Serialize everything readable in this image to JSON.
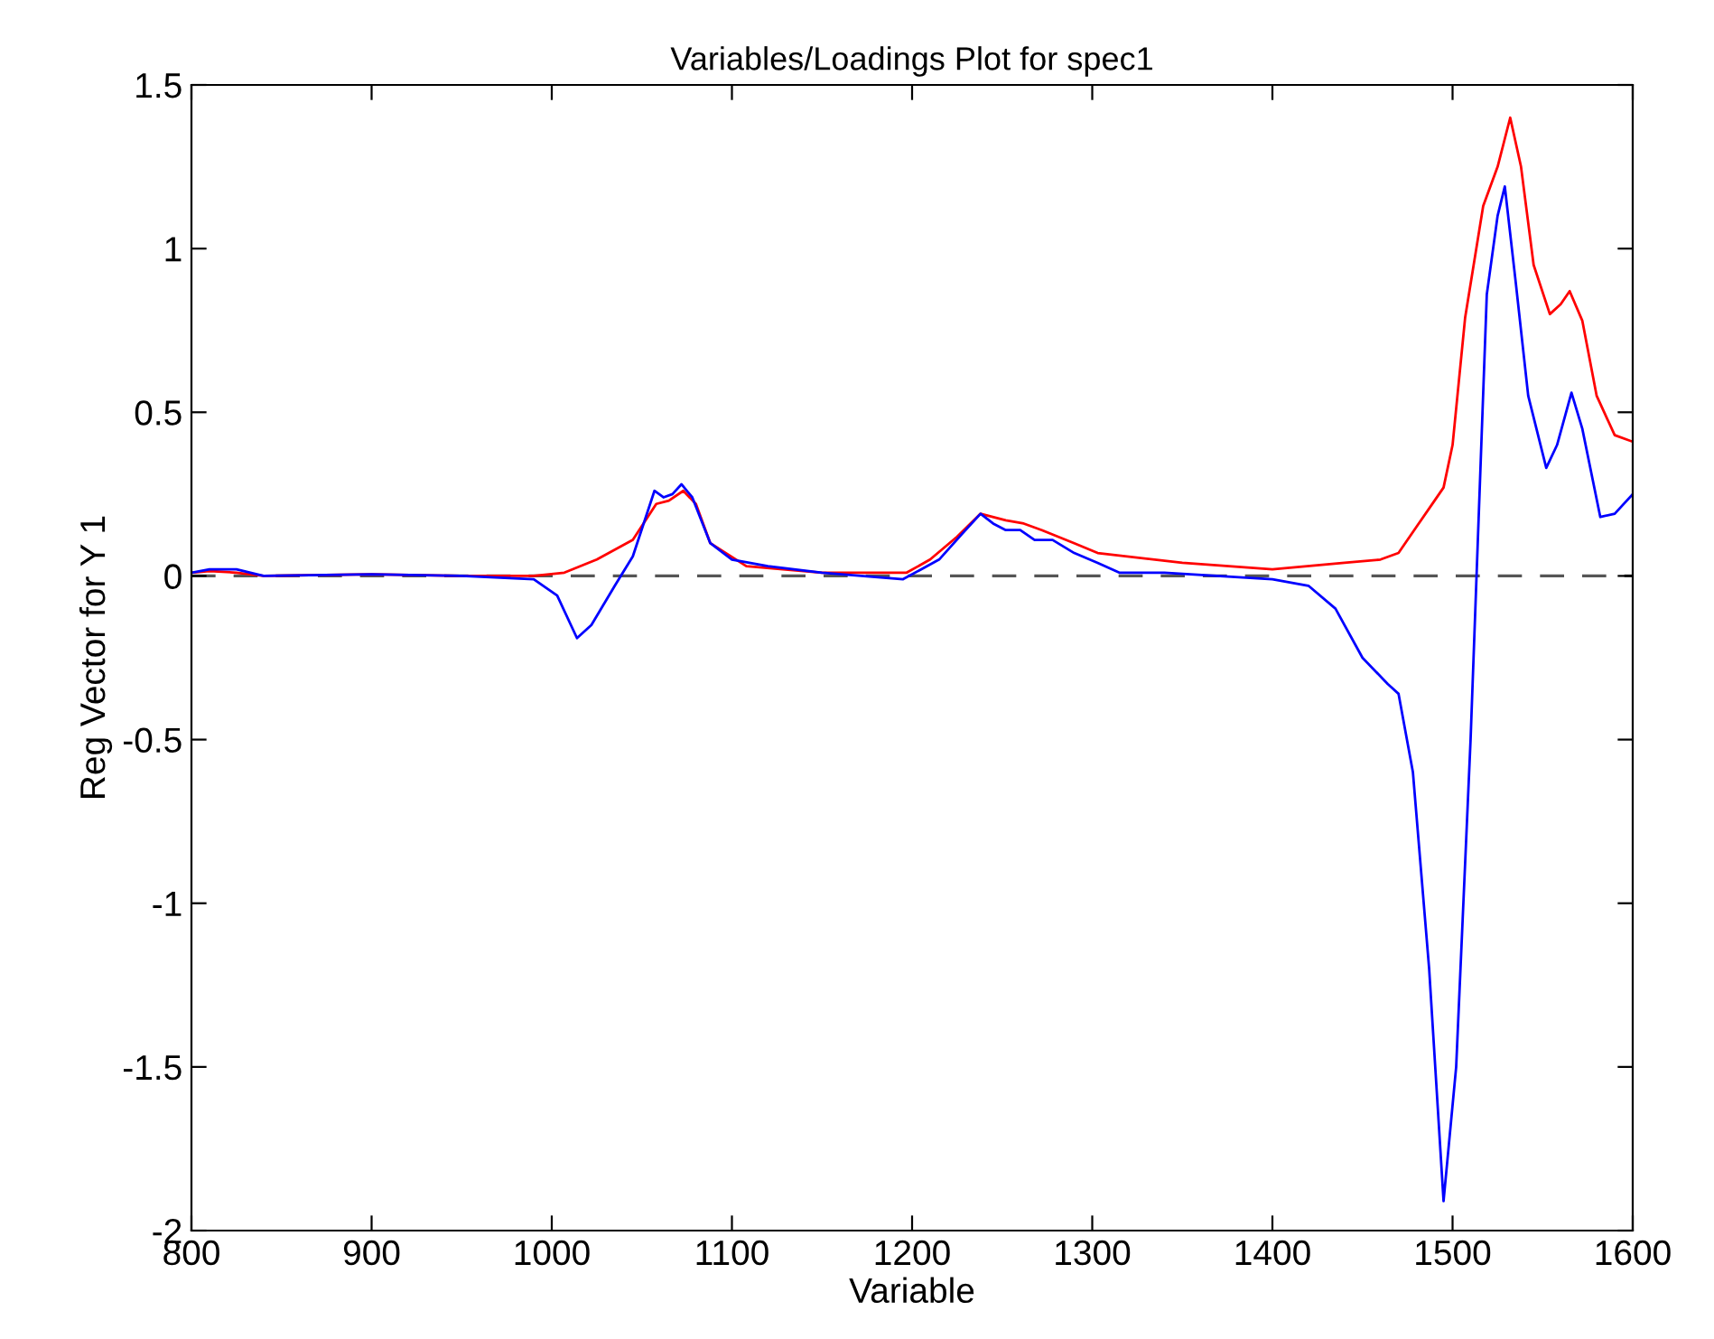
{
  "chart_data": {
    "type": "line",
    "title": "Variables/Loadings Plot for spec1",
    "xlabel": "Variable",
    "ylabel": "Reg Vector for Y 1",
    "xlim": [
      800,
      1600
    ],
    "xticks": [
      800,
      900,
      1000,
      1100,
      1200,
      1300,
      1400,
      1500,
      1600
    ],
    "ylim": [
      -2,
      1.5
    ],
    "yticks": [
      -2,
      -1.5,
      -1,
      -0.5,
      0,
      0.5,
      1,
      1.5
    ],
    "grid": false,
    "legend": false,
    "marker": "none",
    "line_style": "solid",
    "ref_lines": [
      {
        "axis": "y",
        "value": 0,
        "color": "#555555",
        "line_style": "dashed"
      }
    ],
    "series": [
      {
        "color": "#ff0000",
        "x": [
          800,
          810,
          825,
          840,
          900,
          950,
          990,
          1007,
          1025,
          1045,
          1058,
          1065,
          1073,
          1080,
          1088,
          1108,
          1150,
          1197,
          1210,
          1225,
          1238,
          1252,
          1262,
          1272,
          1290,
          1303,
          1350,
          1400,
          1440,
          1460,
          1470,
          1480,
          1490,
          1495,
          1500,
          1507,
          1517,
          1525,
          1532,
          1538,
          1545,
          1554,
          1560,
          1565,
          1572,
          1580,
          1590,
          1600
        ],
        "values": [
          0.01,
          0.015,
          0.01,
          0.0,
          0.005,
          0.0,
          0.0,
          0.01,
          0.05,
          0.11,
          0.22,
          0.23,
          0.26,
          0.22,
          0.1,
          0.03,
          0.01,
          0.01,
          0.05,
          0.12,
          0.19,
          0.17,
          0.16,
          0.14,
          0.1,
          0.07,
          0.04,
          0.02,
          0.04,
          0.05,
          0.07,
          0.15,
          0.23,
          0.27,
          0.4,
          0.79,
          1.13,
          1.25,
          1.4,
          1.25,
          0.95,
          0.8,
          0.83,
          0.87,
          0.78,
          0.55,
          0.43,
          0.41
        ]
      },
      {
        "color": "#0000ff",
        "x": [
          800,
          810,
          825,
          840,
          900,
          950,
          990,
          1003,
          1014,
          1022,
          1035,
          1045,
          1057,
          1062,
          1067,
          1072,
          1078,
          1088,
          1100,
          1120,
          1150,
          1195,
          1205,
          1215,
          1228,
          1238,
          1245,
          1252,
          1260,
          1268,
          1278,
          1290,
          1303,
          1315,
          1340,
          1400,
          1420,
          1435,
          1450,
          1464,
          1470,
          1478,
          1487,
          1495,
          1502,
          1510,
          1519,
          1525,
          1529,
          1535,
          1542,
          1552,
          1558,
          1566,
          1572,
          1582,
          1590,
          1600
        ],
        "values": [
          0.01,
          0.02,
          0.02,
          0.0,
          0.005,
          0.0,
          -0.01,
          -0.06,
          -0.19,
          -0.15,
          -0.03,
          0.06,
          0.26,
          0.24,
          0.25,
          0.28,
          0.24,
          0.1,
          0.05,
          0.03,
          0.01,
          -0.01,
          0.02,
          0.05,
          0.13,
          0.19,
          0.16,
          0.14,
          0.14,
          0.11,
          0.11,
          0.07,
          0.04,
          0.01,
          0.01,
          -0.01,
          -0.03,
          -0.1,
          -0.25,
          -0.33,
          -0.36,
          -0.6,
          -1.2,
          -1.91,
          -1.5,
          -0.5,
          0.86,
          1.1,
          1.19,
          0.9,
          0.55,
          0.33,
          0.4,
          0.56,
          0.45,
          0.18,
          0.19,
          0.25
        ]
      }
    ]
  }
}
